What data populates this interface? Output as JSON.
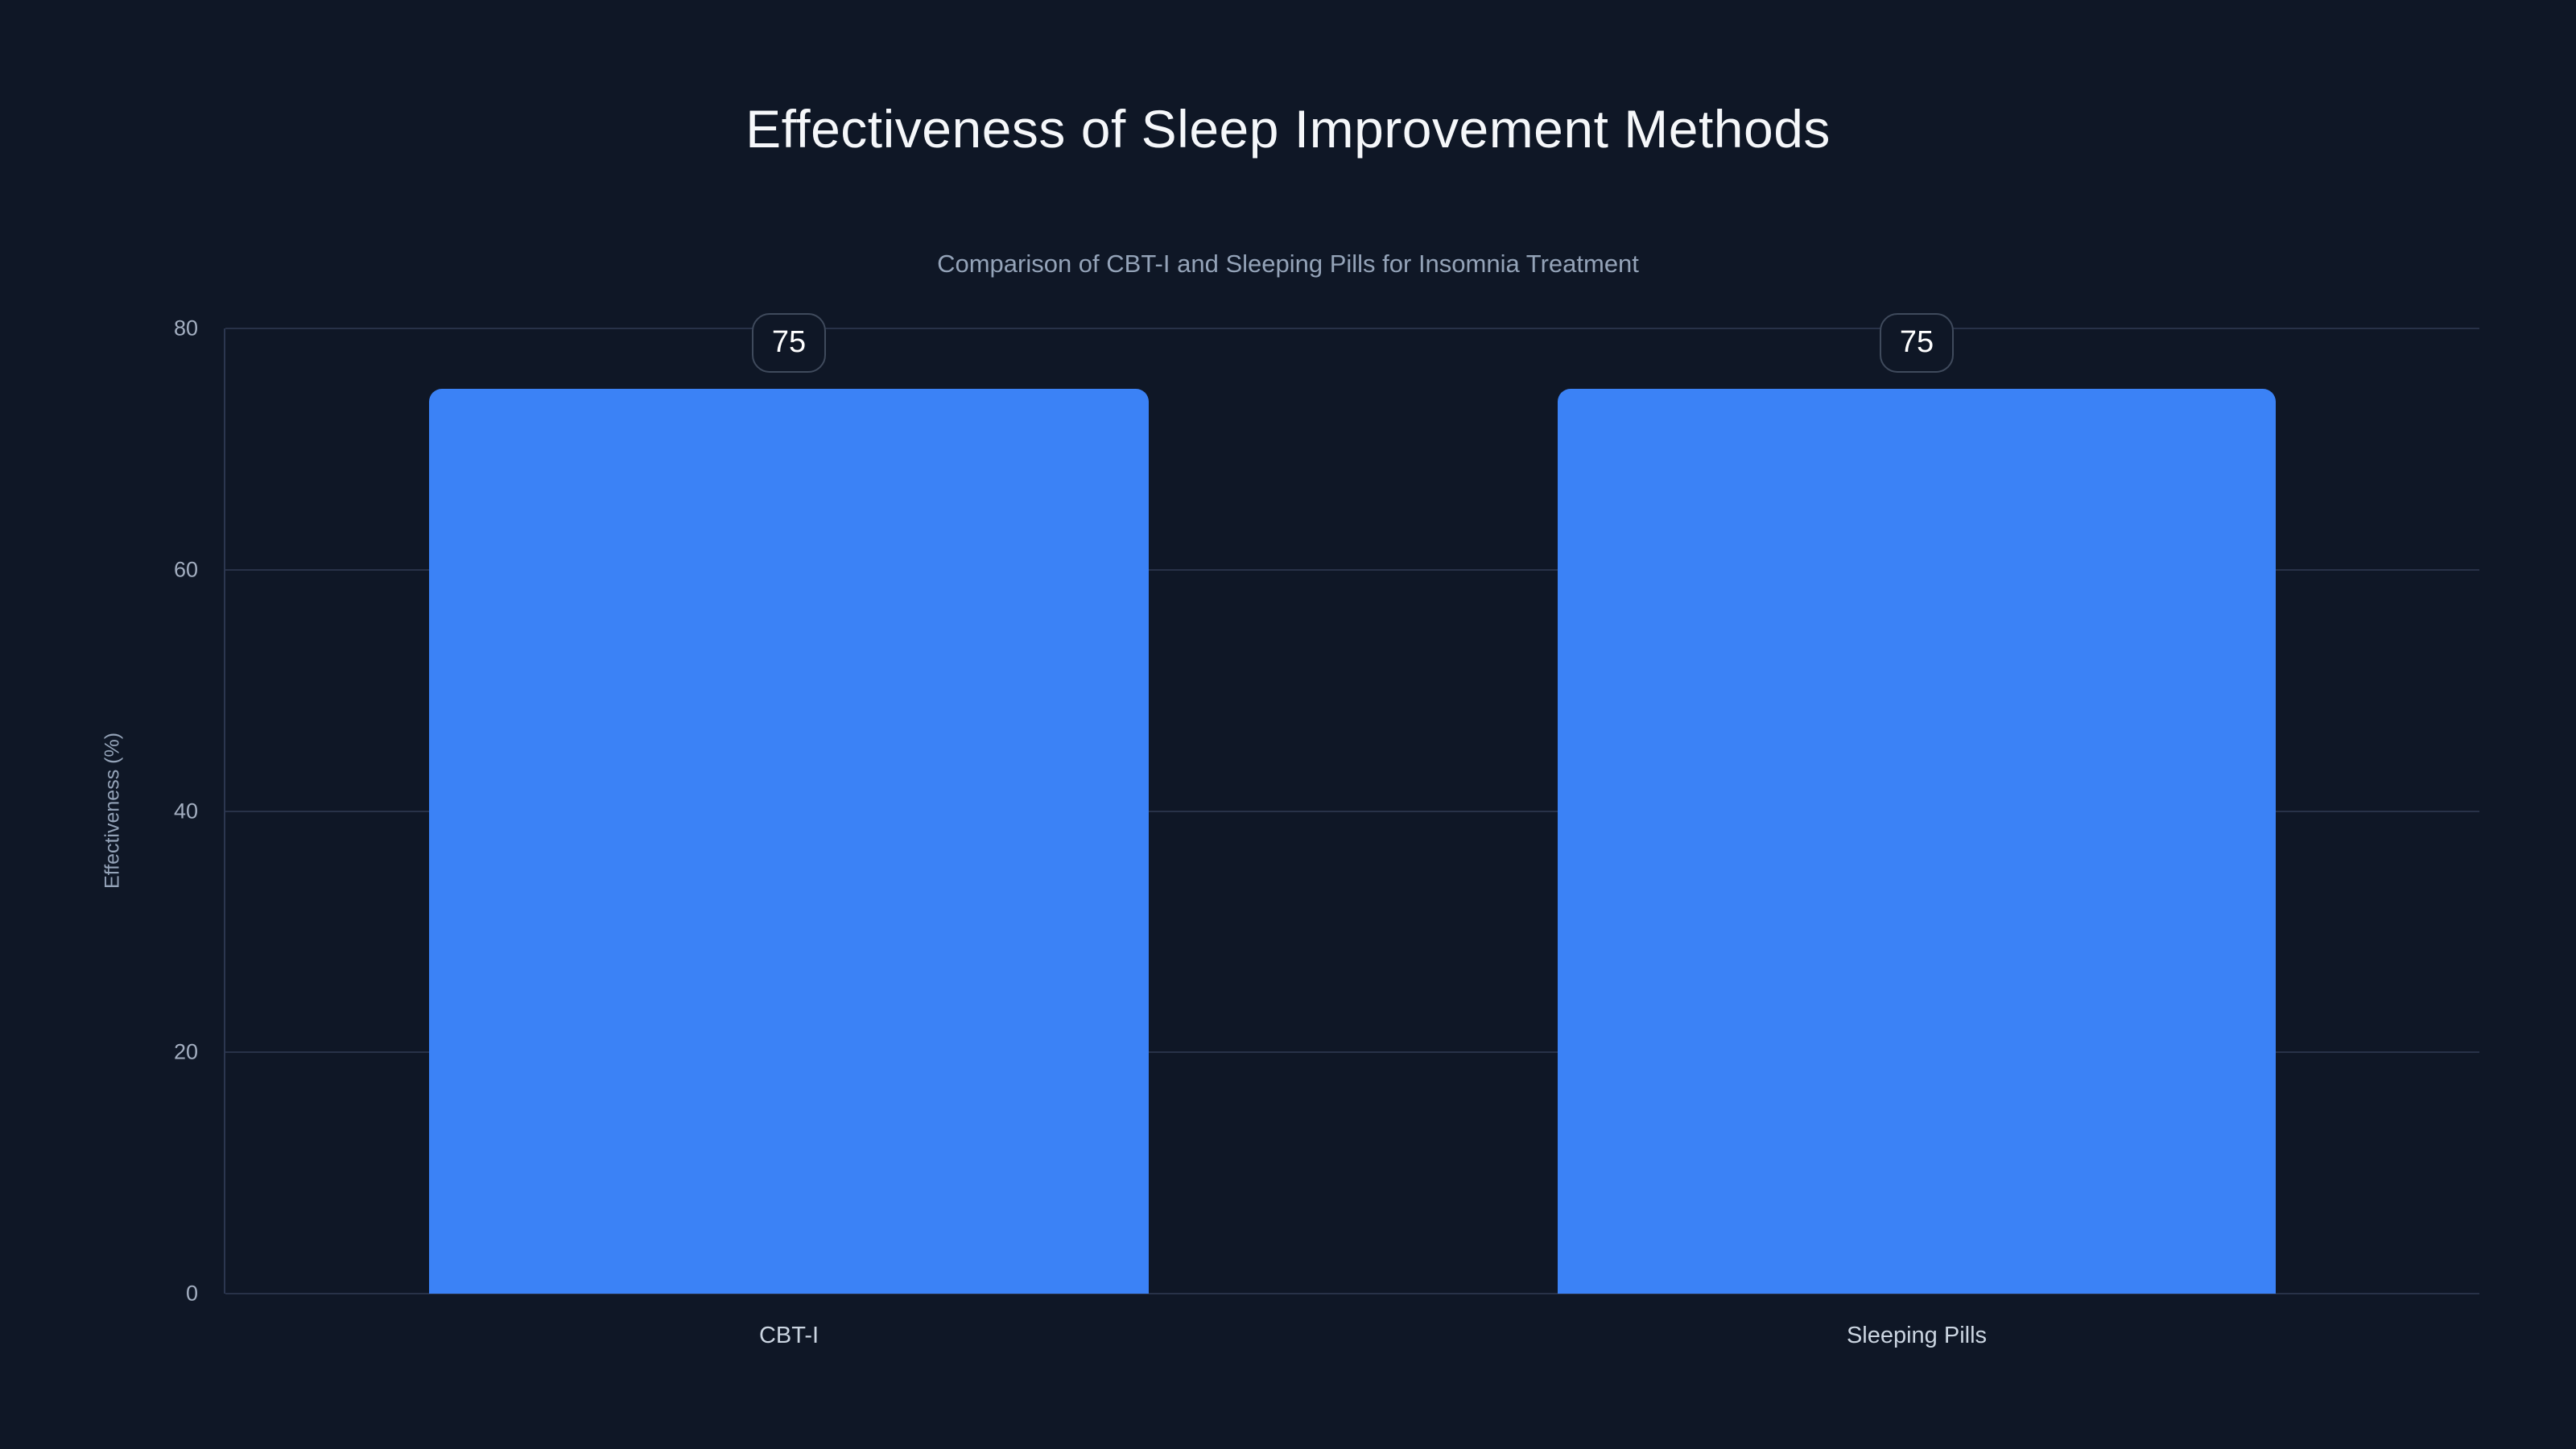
{
  "chart_data": {
    "type": "bar",
    "title": "Effectiveness of Sleep Improvement Methods",
    "subtitle": "Comparison of CBT-I and Sleeping Pills for Insomnia Treatment",
    "categories": [
      "CBT-I",
      "Sleeping Pills"
    ],
    "values": [
      75,
      75
    ],
    "data_labels": [
      "75",
      "75"
    ],
    "xlabel": "",
    "ylabel": "Effectiveness (%)",
    "ylim": [
      0,
      80
    ],
    "yticks": [
      0,
      20,
      40,
      60,
      80
    ],
    "grid": "horizontal-only",
    "legend": "none",
    "colors": {
      "background": "#0f1726",
      "bar": "#3b82f6",
      "gridline": "#283248",
      "axis_line": "#2c3750",
      "title_text": "#f5f7fa",
      "subtitle_text": "#94a3b8",
      "tick_text": "#a3aec0",
      "category_text": "#cbd5e1",
      "value_text": "#ffffff",
      "badge_border": "#3f4a5c"
    }
  }
}
